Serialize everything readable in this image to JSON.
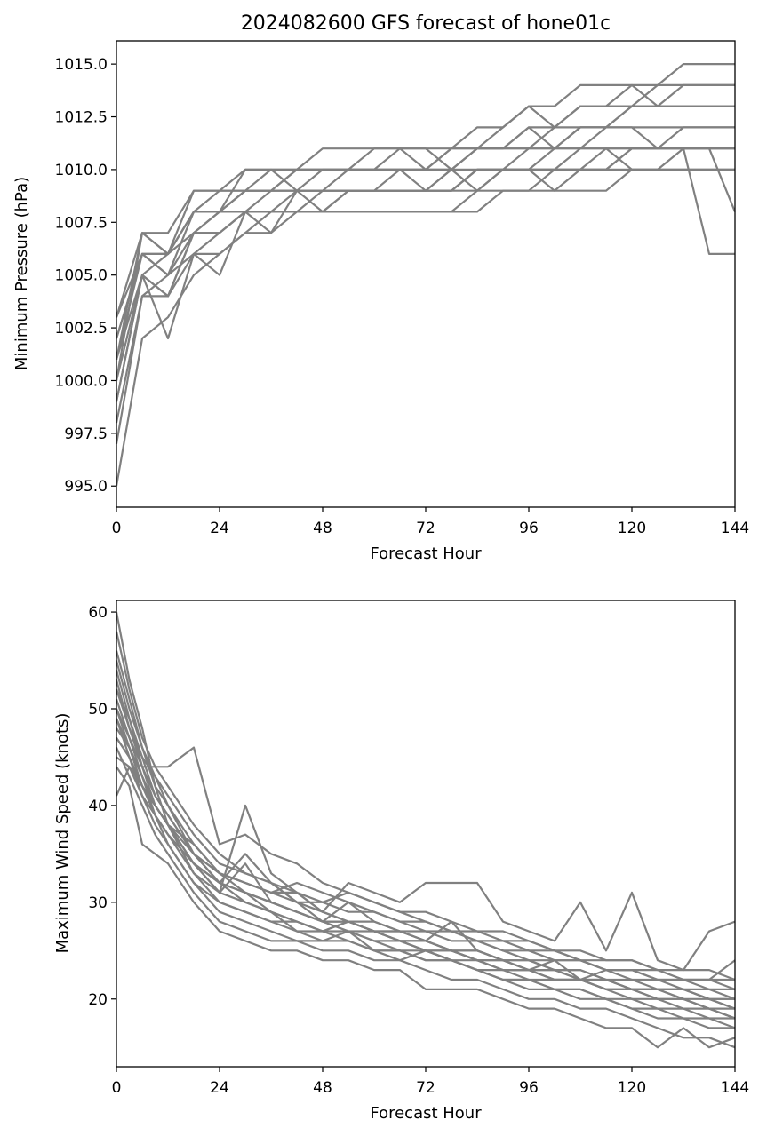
{
  "figure": {
    "title": "2024082600 GFS forecast of hone01c"
  },
  "chart_data": [
    {
      "type": "line",
      "xlabel": "Forecast Hour",
      "ylabel": "Minimum Pressure (hPa)",
      "xlim": [
        0,
        144
      ],
      "ylim": [
        994.0,
        1016.1
      ],
      "xticks": [
        "0",
        "24",
        "48",
        "72",
        "96",
        "120",
        "144"
      ],
      "yticks": [
        "995.0",
        "997.5",
        "1000.0",
        "1002.5",
        "1005.0",
        "1007.5",
        "1010.0",
        "1012.5",
        "1015.0"
      ],
      "ytick_values": [
        995.0,
        997.5,
        1000.0,
        1002.5,
        1005.0,
        1007.5,
        1010.0,
        1012.5,
        1015.0
      ],
      "line_color": "#808080",
      "grid": false,
      "x": [
        0,
        6,
        12,
        18,
        24,
        30,
        36,
        42,
        48,
        54,
        60,
        66,
        72,
        78,
        84,
        90,
        96,
        102,
        108,
        114,
        120,
        126,
        132,
        138,
        144
      ],
      "series": [
        {
          "values": [
            1003,
            1007,
            1007,
            1009,
            1009,
            1010,
            1010,
            1010,
            1011,
            1011,
            1011,
            1011,
            1011,
            1011,
            1012,
            1012,
            1013,
            1013,
            1014,
            1014,
            1014,
            1014,
            1015,
            1015,
            1015
          ]
        },
        {
          "values": [
            1002,
            1006,
            1006,
            1008,
            1009,
            1009,
            1010,
            1009,
            1010,
            1010,
            1011,
            1011,
            1010,
            1011,
            1011,
            1012,
            1013,
            1012,
            1013,
            1013,
            1014,
            1013,
            1014,
            1014,
            1014
          ]
        },
        {
          "values": [
            1001,
            1006,
            1005,
            1008,
            1008,
            1009,
            1009,
            1010,
            1010,
            1010,
            1010,
            1010,
            1010,
            1010,
            1011,
            1011,
            1012,
            1012,
            1013,
            1013,
            1013,
            1013,
            1013,
            1013,
            1013
          ]
        },
        {
          "values": [
            1000,
            1005,
            1006,
            1007,
            1008,
            1008,
            1009,
            1009,
            1009,
            1010,
            1010,
            1010,
            1010,
            1011,
            1011,
            1011,
            1011,
            1012,
            1012,
            1012,
            1013,
            1014,
            1014,
            1014,
            1014
          ]
        },
        {
          "values": [
            999,
            1005,
            1004,
            1007,
            1007,
            1008,
            1008,
            1009,
            1009,
            1009,
            1009,
            1010,
            1009,
            1009,
            1010,
            1010,
            1011,
            1011,
            1012,
            1012,
            1013,
            1013,
            1013,
            1013,
            1013
          ]
        },
        {
          "values": [
            998,
            1004,
            1005,
            1006,
            1007,
            1008,
            1008,
            1008,
            1009,
            1009,
            1009,
            1009,
            1009,
            1009,
            1010,
            1010,
            1010,
            1011,
            1011,
            1012,
            1012,
            1012,
            1012,
            1012,
            1012
          ]
        },
        {
          "values": [
            997,
            1004,
            1004,
            1006,
            1006,
            1007,
            1008,
            1008,
            1008,
            1009,
            1009,
            1009,
            1009,
            1010,
            1010,
            1010,
            1010,
            1010,
            1011,
            1011,
            1011,
            1011,
            1011,
            1011,
            1011
          ]
        },
        {
          "values": [
            995,
            1002,
            1003,
            1005,
            1006,
            1007,
            1007,
            1008,
            1008,
            1008,
            1008,
            1008,
            1008,
            1008,
            1009,
            1009,
            1009,
            1010,
            1010,
            1010,
            1011,
            1011,
            1011,
            1011,
            1011
          ]
        },
        {
          "values": [
            1001,
            1005,
            1002,
            1006,
            1005,
            1008,
            1007,
            1009,
            1008,
            1009,
            1009,
            1009,
            1009,
            1010,
            1009,
            1010,
            1010,
            1009,
            1010,
            1011,
            1010,
            1010,
            1010,
            1010,
            1010
          ]
        },
        {
          "values": [
            1002,
            1006,
            1005,
            1007,
            1007,
            1008,
            1008,
            1008,
            1008,
            1008,
            1008,
            1008,
            1008,
            1008,
            1008,
            1009,
            1009,
            1009,
            1009,
            1009,
            1010,
            1010,
            1011,
            1006,
            1006
          ]
        },
        {
          "values": [
            1000,
            1007,
            1006,
            1008,
            1008,
            1009,
            1009,
            1009,
            1009,
            1009,
            1009,
            1009,
            1009,
            1009,
            1010,
            1010,
            1010,
            1010,
            1010,
            1010,
            1011,
            1011,
            1011,
            1011,
            1008
          ]
        },
        {
          "values": [
            1003,
            1006,
            1006,
            1008,
            1008,
            1010,
            1010,
            1010,
            1010,
            1010,
            1010,
            1011,
            1011,
            1010,
            1011,
            1011,
            1012,
            1011,
            1012,
            1012,
            1012,
            1011,
            1012,
            1012,
            1012
          ]
        },
        {
          "values": [
            999,
            1005,
            1004,
            1007,
            1008,
            1009,
            1009,
            1009,
            1009,
            1009,
            1009,
            1009,
            1009,
            1009,
            1009,
            1010,
            1010,
            1010,
            1010,
            1010,
            1010,
            1010,
            1010,
            1010,
            1010
          ]
        },
        {
          "values": [
            1001,
            1007,
            1006,
            1009,
            1009,
            1009,
            1009,
            1010,
            1010,
            1010,
            1010,
            1010,
            1010,
            1010,
            1011,
            1011,
            1011,
            1011,
            1011,
            1011,
            1011,
            1011,
            1011,
            1011,
            1011
          ]
        }
      ]
    },
    {
      "type": "line",
      "xlabel": "Forecast Hour",
      "ylabel": "Maximum Wind Speed (knots)",
      "xlim": [
        0,
        144
      ],
      "ylim": [
        13,
        61.2
      ],
      "xticks": [
        "0",
        "24",
        "48",
        "72",
        "96",
        "120",
        "144"
      ],
      "yticks": [
        "20",
        "30",
        "40",
        "50",
        "60"
      ],
      "ytick_values": [
        20,
        30,
        40,
        50,
        60
      ],
      "line_color": "#808080",
      "grid": false,
      "x": [
        0,
        3,
        6,
        9,
        12,
        18,
        24,
        30,
        36,
        42,
        48,
        54,
        60,
        66,
        72,
        78,
        84,
        90,
        96,
        102,
        108,
        114,
        120,
        126,
        132,
        138,
        144
      ],
      "series": [
        {
          "values": [
            60,
            53,
            48,
            42,
            38,
            34,
            31,
            30,
            29,
            28,
            27,
            28,
            27,
            26,
            25,
            25,
            24,
            23,
            23,
            22,
            22,
            21,
            21,
            21,
            20,
            20,
            19
          ]
        },
        {
          "values": [
            55,
            50,
            46,
            43,
            40,
            35,
            33,
            32,
            31,
            30,
            29,
            28,
            27,
            26,
            26,
            25,
            24,
            24,
            23,
            23,
            22,
            22,
            21,
            21,
            21,
            20,
            20
          ]
        },
        {
          "values": [
            52,
            49,
            44,
            41,
            39,
            35,
            32,
            31,
            30,
            29,
            28,
            27,
            27,
            26,
            25,
            25,
            24,
            23,
            23,
            22,
            22,
            21,
            21,
            20,
            20,
            19,
            18
          ]
        },
        {
          "values": [
            50,
            47,
            44,
            44,
            44,
            46,
            36,
            37,
            35,
            34,
            32,
            31,
            30,
            29,
            29,
            28,
            27,
            27,
            26,
            25,
            24,
            23,
            23,
            23,
            22,
            22,
            21
          ]
        },
        {
          "values": [
            48,
            46,
            43,
            40,
            38,
            34,
            32,
            35,
            32,
            30,
            28,
            30,
            28,
            27,
            26,
            28,
            25,
            24,
            23,
            24,
            22,
            23,
            22,
            21,
            21,
            20,
            19
          ]
        },
        {
          "values": [
            47,
            45,
            42,
            40,
            38,
            36,
            33,
            32,
            31,
            31,
            30,
            29,
            29,
            28,
            28,
            27,
            26,
            25,
            25,
            24,
            24,
            23,
            23,
            22,
            22,
            21,
            21
          ]
        },
        {
          "values": [
            45,
            44,
            41,
            39,
            37,
            34,
            31,
            40,
            33,
            31,
            29,
            28,
            27,
            27,
            26,
            25,
            25,
            24,
            24,
            23,
            23,
            22,
            22,
            22,
            21,
            21,
            20
          ]
        },
        {
          "values": [
            53,
            48,
            45,
            43,
            41,
            37,
            34,
            33,
            32,
            31,
            29,
            32,
            31,
            30,
            32,
            32,
            32,
            28,
            27,
            26,
            30,
            25,
            31,
            24,
            23,
            27,
            28
          ]
        },
        {
          "values": [
            51,
            47,
            43,
            40,
            38,
            33,
            30,
            29,
            28,
            27,
            27,
            28,
            27,
            26,
            26,
            25,
            24,
            24,
            23,
            22,
            22,
            21,
            20,
            20,
            19,
            19,
            18
          ]
        },
        {
          "values": [
            49,
            45,
            42,
            39,
            36,
            32,
            29,
            28,
            27,
            26,
            26,
            26,
            25,
            25,
            24,
            24,
            23,
            22,
            22,
            21,
            21,
            20,
            19,
            18,
            18,
            17,
            17
          ]
        },
        {
          "values": [
            46,
            43,
            40,
            37,
            35,
            31,
            28,
            27,
            26,
            26,
            25,
            25,
            24,
            24,
            23,
            22,
            22,
            21,
            20,
            20,
            19,
            19,
            18,
            17,
            16,
            16,
            15
          ]
        },
        {
          "values": [
            44,
            42,
            36,
            35,
            34,
            30,
            27,
            26,
            25,
            25,
            24,
            24,
            23,
            23,
            21,
            21,
            21,
            20,
            19,
            19,
            18,
            17,
            17,
            15,
            17,
            15,
            16
          ]
        },
        {
          "values": [
            58,
            52,
            47,
            44,
            42,
            38,
            35,
            33,
            32,
            30,
            30,
            31,
            30,
            29,
            28,
            27,
            27,
            26,
            26,
            25,
            25,
            24,
            24,
            23,
            23,
            23,
            22
          ]
        },
        {
          "values": [
            56,
            51,
            46,
            42,
            40,
            36,
            33,
            31,
            30,
            29,
            28,
            28,
            28,
            27,
            27,
            26,
            26,
            25,
            24,
            24,
            24,
            23,
            23,
            22,
            22,
            22,
            22
          ]
        },
        {
          "values": [
            54,
            49,
            45,
            41,
            39,
            35,
            32,
            31,
            29,
            28,
            27,
            27,
            26,
            26,
            25,
            24,
            24,
            23,
            23,
            23,
            22,
            22,
            21,
            21,
            20,
            19,
            19
          ]
        },
        {
          "values": [
            41,
            44,
            42,
            40,
            38,
            34,
            32,
            30,
            29,
            27,
            26,
            27,
            25,
            24,
            25,
            24,
            23,
            22,
            21,
            21,
            20,
            20,
            19,
            19,
            18,
            18,
            17
          ]
        },
        {
          "values": [
            50,
            46,
            43,
            39,
            37,
            33,
            31,
            34,
            30,
            29,
            28,
            28,
            27,
            27,
            26,
            25,
            25,
            24,
            24,
            23,
            23,
            22,
            21,
            21,
            21,
            20,
            20
          ]
        },
        {
          "values": [
            47,
            45,
            41,
            38,
            36,
            32,
            30,
            29,
            28,
            28,
            27,
            26,
            25,
            25,
            24,
            24,
            23,
            22,
            22,
            21,
            21,
            20,
            20,
            19,
            19,
            18,
            18
          ]
        },
        {
          "values": [
            52,
            48,
            44,
            40,
            38,
            35,
            33,
            32,
            31,
            32,
            31,
            30,
            29,
            28,
            27,
            27,
            26,
            26,
            25,
            25,
            24,
            24,
            24,
            23,
            22,
            22,
            24
          ]
        },
        {
          "values": [
            49,
            46,
            42,
            40,
            38,
            34,
            32,
            31,
            30,
            29,
            28,
            27,
            26,
            25,
            25,
            24,
            23,
            23,
            22,
            22,
            22,
            21,
            21,
            20,
            20,
            19,
            18
          ]
        }
      ]
    }
  ]
}
